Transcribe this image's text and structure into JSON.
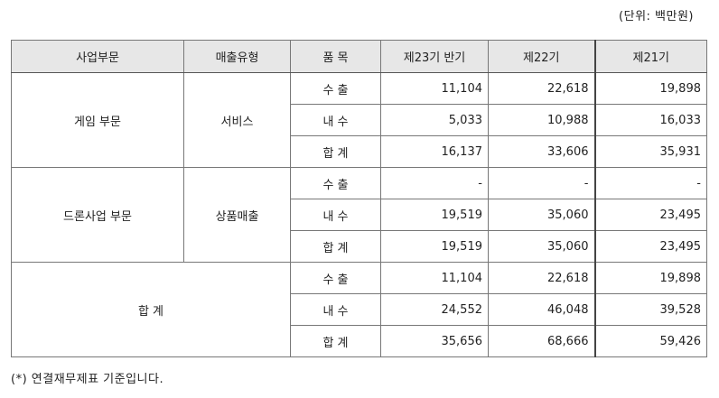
{
  "unit_label": "(단위: 백만원)",
  "headers": [
    "사업부문",
    "매출유형",
    "품 목",
    "제23기 반기",
    "제22기",
    "제21기"
  ],
  "groups": [
    {
      "segment": "게임 부문",
      "type": "서비스",
      "rows": [
        {
          "item": "수 출",
          "v23": "11,104",
          "v22": "22,618",
          "v21": "19,898"
        },
        {
          "item": "내 수",
          "v23": "5,033",
          "v22": "10,988",
          "v21": "16,033"
        },
        {
          "item": "합 계",
          "v23": "16,137",
          "v22": "33,606",
          "v21": "35,931"
        }
      ]
    },
    {
      "segment": "드론사업 부문",
      "type": "상품매출",
      "rows": [
        {
          "item": "수 출",
          "v23": "-",
          "v22": "-",
          "v21": "-"
        },
        {
          "item": "내 수",
          "v23": "19,519",
          "v22": "35,060",
          "v21": "23,495"
        },
        {
          "item": "합 계",
          "v23": "19,519",
          "v22": "35,060",
          "v21": "23,495"
        }
      ]
    }
  ],
  "total": {
    "label": "합 계",
    "rows": [
      {
        "item": "수 출",
        "v23": "11,104",
        "v22": "22,618",
        "v21": "19,898"
      },
      {
        "item": "내 수",
        "v23": "24,552",
        "v22": "46,048",
        "v21": "39,528"
      },
      {
        "item": "합 계",
        "v23": "35,656",
        "v22": "68,666",
        "v21": "59,426"
      }
    ]
  },
  "footnote": "(*) 연결재무제표 기준입니다."
}
